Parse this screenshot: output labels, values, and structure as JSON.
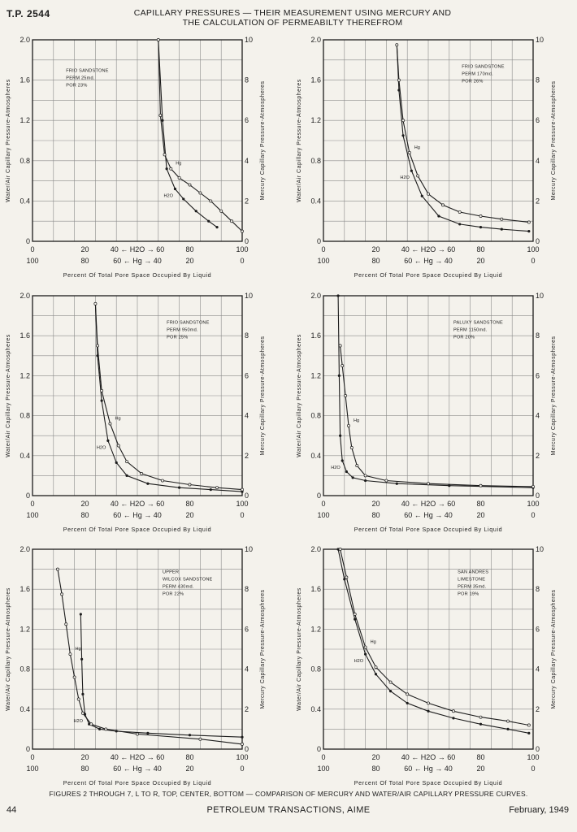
{
  "header": {
    "id": "T.P. 2544",
    "title_line1": "CAPILLARY PRESSURES — THEIR MEASUREMENT USING MERCURY AND",
    "title_line2": "THE CALCULATION OF PERMEABILTY THEREFROM"
  },
  "caption": "FIGURES 2 THROUGH 7, L TO R, TOP, CENTER, BOTTOM — COMPARISON OF MERCURY AND WATER/AIR CAPILLARY PRESSURE CURVES.",
  "footer": {
    "page": "44",
    "journal": "PETROLEUM TRANSACTIONS, AIME",
    "date": "February, 1949"
  },
  "axis_text": {
    "left_label": "Water/Air Capillary Pressure-Atmospheres",
    "right_label": "Mercury Capillary Pressure-Atmospheres",
    "x_label": "Percent Of Total Pore Space Occupied By Liquid",
    "x_top_ticks": [
      "0",
      "20",
      "40 ← H2O → 60",
      "80",
      "100"
    ],
    "x_bottom_ticks": [
      "100",
      "80",
      "60 ← Hg → 40",
      "20",
      "0"
    ],
    "left_ticks": [
      "0",
      "0.4",
      "0.8",
      "1.2",
      "1.6",
      "2.0"
    ],
    "right_ticks": [
      "0",
      "2",
      "4",
      "6",
      "8",
      "10"
    ]
  },
  "colors": {
    "paper": "#f4f2ec",
    "ink": "#1c1c1c",
    "grid": "#8a8a8a"
  },
  "chart_data": [
    {
      "type": "line",
      "label_lines": [
        "FRIO SANDSTONE",
        "PERM   25md.",
        "POR    23%"
      ],
      "xlim": [
        0,
        100
      ],
      "ylim": [
        0,
        2.0
      ],
      "y2lim": [
        0,
        10
      ],
      "series": [
        {
          "name": "H2O",
          "x": [
            60,
            62,
            64,
            68,
            72,
            78,
            84,
            88
          ],
          "y": [
            2.0,
            1.2,
            0.72,
            0.52,
            0.42,
            0.3,
            0.2,
            0.14
          ]
        },
        {
          "name": "Hg",
          "x": [
            60,
            61,
            63,
            66,
            70,
            75,
            80,
            85,
            90,
            95,
            100
          ],
          "y": [
            2.0,
            1.25,
            0.86,
            0.72,
            0.63,
            0.56,
            0.48,
            0.4,
            0.3,
            0.2,
            0.1
          ]
        }
      ]
    },
    {
      "type": "line",
      "label_lines": [
        "FRIO SANDSTONE",
        "PERM   170md.",
        "POR    26%"
      ],
      "xlim": [
        0,
        100
      ],
      "ylim": [
        0,
        2.0
      ],
      "y2lim": [
        0,
        10
      ],
      "series": [
        {
          "name": "H2O",
          "x": [
            35,
            36,
            38,
            42,
            47,
            55,
            65,
            75,
            85,
            98
          ],
          "y": [
            1.95,
            1.5,
            1.05,
            0.7,
            0.45,
            0.25,
            0.17,
            0.14,
            0.12,
            0.1
          ]
        },
        {
          "name": "Hg",
          "x": [
            35,
            36,
            38,
            41,
            45,
            50,
            57,
            65,
            75,
            85,
            98
          ],
          "y": [
            1.95,
            1.6,
            1.2,
            0.88,
            0.65,
            0.47,
            0.36,
            0.29,
            0.25,
            0.22,
            0.19
          ]
        }
      ]
    },
    {
      "type": "line",
      "label_lines": [
        "FRIO SANDSTONE",
        "PERM   950md.",
        "POR    25%"
      ],
      "xlim": [
        0,
        100
      ],
      "ylim": [
        0,
        2.0
      ],
      "y2lim": [
        0,
        10
      ],
      "series": [
        {
          "name": "H2O",
          "x": [
            30,
            31,
            33,
            36,
            40,
            45,
            55,
            70,
            85,
            100
          ],
          "y": [
            1.92,
            1.4,
            0.95,
            0.55,
            0.33,
            0.2,
            0.12,
            0.08,
            0.06,
            0.04
          ]
        },
        {
          "name": "Hg",
          "x": [
            30,
            31,
            33,
            37,
            41,
            45,
            52,
            62,
            75,
            88,
            100
          ],
          "y": [
            1.92,
            1.5,
            1.05,
            0.72,
            0.5,
            0.34,
            0.22,
            0.15,
            0.11,
            0.08,
            0.06
          ]
        }
      ]
    },
    {
      "type": "line",
      "label_lines": [
        "PALUXY SANDSTONE",
        "PERM   1150md.",
        "POR    20%"
      ],
      "xlim": [
        0,
        100
      ],
      "ylim": [
        0,
        2.0
      ],
      "y2lim": [
        0,
        10
      ],
      "series": [
        {
          "name": "H2O",
          "x": [
            7,
            7.5,
            8,
            9,
            11,
            14,
            20,
            35,
            60,
            100
          ],
          "y": [
            2.0,
            1.2,
            0.6,
            0.35,
            0.24,
            0.18,
            0.15,
            0.12,
            0.1,
            0.08
          ]
        },
        {
          "name": "Hg",
          "x": [
            8,
            9,
            10.5,
            12,
            13.5,
            16,
            20,
            30,
            50,
            75,
            100
          ],
          "y": [
            1.5,
            1.3,
            1.0,
            0.7,
            0.48,
            0.3,
            0.2,
            0.15,
            0.12,
            0.1,
            0.09
          ]
        }
      ]
    },
    {
      "type": "line",
      "label_lines": [
        "UPPER",
        "WILCOX SANDSTONE",
        "PERM   430md.",
        "POR    22%"
      ],
      "xlim": [
        0,
        100
      ],
      "ylim": [
        0,
        2.0
      ],
      "y2lim": [
        0,
        10
      ],
      "series": [
        {
          "name": "H2O",
          "x": [
            23,
            23.5,
            24,
            25,
            27,
            32,
            40,
            55,
            75,
            100
          ],
          "y": [
            1.35,
            0.9,
            0.55,
            0.35,
            0.25,
            0.2,
            0.18,
            0.16,
            0.14,
            0.12
          ]
        },
        {
          "name": "Hg",
          "x": [
            12,
            14,
            16,
            18,
            20,
            22,
            24,
            28,
            35,
            50,
            80,
            100
          ],
          "y": [
            1.8,
            1.55,
            1.25,
            0.95,
            0.72,
            0.5,
            0.36,
            0.25,
            0.2,
            0.15,
            0.1,
            0.05
          ]
        }
      ]
    },
    {
      "type": "line",
      "label_lines": [
        "SAN ANDRES",
        "LIMESTONE",
        "PERM   35md.",
        "POR    19%"
      ],
      "xlim": [
        0,
        100
      ],
      "ylim": [
        0,
        2.0
      ],
      "y2lim": [
        0,
        10
      ],
      "series": [
        {
          "name": "H2O",
          "x": [
            7,
            10,
            15,
            20,
            25,
            32,
            40,
            50,
            62,
            75,
            88,
            98
          ],
          "y": [
            2.0,
            1.7,
            1.3,
            0.95,
            0.75,
            0.58,
            0.46,
            0.38,
            0.31,
            0.25,
            0.2,
            0.16
          ]
        },
        {
          "name": "Hg",
          "x": [
            8,
            11,
            15,
            20,
            25,
            32,
            40,
            50,
            62,
            75,
            88,
            98
          ],
          "y": [
            2.0,
            1.72,
            1.35,
            1.02,
            0.82,
            0.67,
            0.55,
            0.46,
            0.38,
            0.32,
            0.28,
            0.24
          ]
        }
      ]
    }
  ]
}
